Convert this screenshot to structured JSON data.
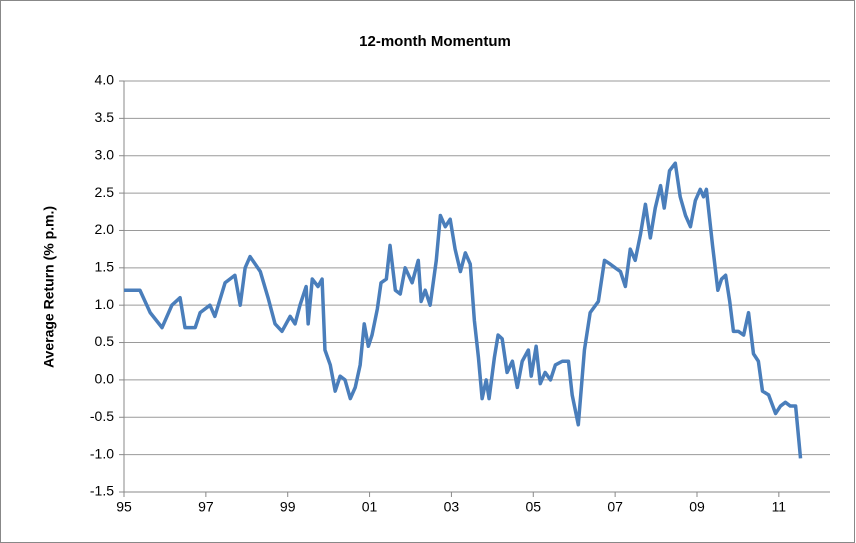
{
  "chart_data": {
    "type": "line",
    "title": "12-month Momentum",
    "y_label": "Average Return (% p.m.)",
    "xlim": [
      1995,
      2012.25
    ],
    "xticks": [
      {
        "value": 1995,
        "label": "95"
      },
      {
        "value": 1997,
        "label": "97"
      },
      {
        "value": 1999,
        "label": "99"
      },
      {
        "value": 2001,
        "label": "01"
      },
      {
        "value": 2003,
        "label": "03"
      },
      {
        "value": 2005,
        "label": "05"
      },
      {
        "value": 2007,
        "label": "07"
      },
      {
        "value": 2009,
        "label": "09"
      },
      {
        "value": 2011,
        "label": "11"
      }
    ],
    "ylim": [
      -1.5,
      4
    ],
    "yticks": [
      -1.5,
      {
        "value": -1,
        "label": "-1.0"
      },
      -0.5,
      {
        "value": 0,
        "label": "0.0"
      },
      0.5,
      {
        "value": 1,
        "label": "1.0"
      },
      1.5,
      {
        "value": 2,
        "label": "2.0"
      },
      2.5,
      {
        "value": 3,
        "label": "3.0"
      },
      3.5,
      {
        "value": 4,
        "label": "4.0"
      }
    ],
    "grid": true,
    "x": [
      1995.0,
      1995.39,
      1995.64,
      1995.93,
      1996.17,
      1996.37,
      1996.49,
      1996.74,
      1996.86,
      1997.1,
      1997.22,
      1997.47,
      1997.71,
      1997.84,
      1997.96,
      1998.08,
      1998.33,
      1998.52,
      1998.69,
      1998.86,
      1999.06,
      1999.18,
      1999.3,
      1999.45,
      1999.5,
      1999.6,
      1999.74,
      1999.84,
      1999.91,
      2000.04,
      2000.16,
      2000.28,
      2000.4,
      2000.53,
      2000.65,
      2000.77,
      2000.87,
      2000.97,
      2001.06,
      2001.19,
      2001.28,
      2001.41,
      2001.5,
      2001.63,
      2001.75,
      2001.87,
      2002.04,
      2002.19,
      2002.26,
      2002.36,
      2002.48,
      2002.63,
      2002.73,
      2002.85,
      2002.97,
      2003.09,
      2003.22,
      2003.34,
      2003.46,
      2003.56,
      2003.66,
      2003.75,
      2003.85,
      2003.92,
      2004.05,
      2004.14,
      2004.24,
      2004.36,
      2004.49,
      2004.61,
      2004.73,
      2004.88,
      2004.95,
      2005.07,
      2005.17,
      2005.29,
      2005.42,
      2005.54,
      2005.71,
      2005.86,
      2005.95,
      2006.1,
      2006.25,
      2006.39,
      2006.59,
      2006.74,
      2006.88,
      2007.0,
      2007.13,
      2007.25,
      2007.37,
      2007.49,
      2007.62,
      2007.74,
      2007.86,
      2007.98,
      2008.11,
      2008.2,
      2008.33,
      2008.47,
      2008.59,
      2008.72,
      2008.84,
      2008.96,
      2009.08,
      2009.16,
      2009.23,
      2009.38,
      2009.51,
      2009.6,
      2009.7,
      2009.8,
      2009.89,
      2010.01,
      2010.14,
      2010.26,
      2010.38,
      2010.5,
      2010.6,
      2010.75,
      2010.92,
      2011.04,
      2011.16,
      2011.28,
      2011.41,
      2011.53
    ],
    "series": [
      {
        "name": "12-month Momentum",
        "color": "#4a7ebb",
        "values": [
          1.2,
          1.2,
          0.9,
          0.7,
          1.0,
          1.1,
          0.7,
          0.7,
          0.9,
          1.0,
          0.85,
          1.3,
          1.4,
          1.0,
          1.5,
          1.65,
          1.45,
          1.1,
          0.75,
          0.65,
          0.85,
          0.75,
          1.0,
          1.25,
          0.75,
          1.35,
          1.25,
          1.35,
          0.4,
          0.2,
          -0.15,
          0.05,
          0.0,
          -0.25,
          -0.1,
          0.2,
          0.75,
          0.45,
          0.6,
          0.95,
          1.3,
          1.35,
          1.8,
          1.2,
          1.15,
          1.5,
          1.3,
          1.6,
          1.05,
          1.2,
          1.0,
          1.6,
          2.2,
          2.05,
          2.15,
          1.75,
          1.45,
          1.7,
          1.55,
          0.8,
          0.3,
          -0.25,
          0.0,
          -0.25,
          0.3,
          0.6,
          0.55,
          0.1,
          0.25,
          -0.1,
          0.25,
          0.4,
          0.05,
          0.45,
          -0.05,
          0.1,
          0.0,
          0.2,
          0.25,
          0.25,
          -0.2,
          -0.6,
          0.4,
          0.9,
          1.05,
          1.6,
          1.55,
          1.5,
          1.45,
          1.25,
          1.75,
          1.6,
          1.95,
          2.35,
          1.9,
          2.3,
          2.6,
          2.3,
          2.8,
          2.9,
          2.45,
          2.2,
          2.05,
          2.4,
          2.55,
          2.45,
          2.55,
          1.8,
          1.2,
          1.35,
          1.4,
          1.05,
          0.65,
          0.65,
          0.6,
          0.9,
          0.35,
          0.25,
          -0.15,
          -0.2,
          -0.45,
          -0.35,
          -0.3,
          -0.35,
          -0.35,
          -1.05
        ]
      }
    ]
  }
}
